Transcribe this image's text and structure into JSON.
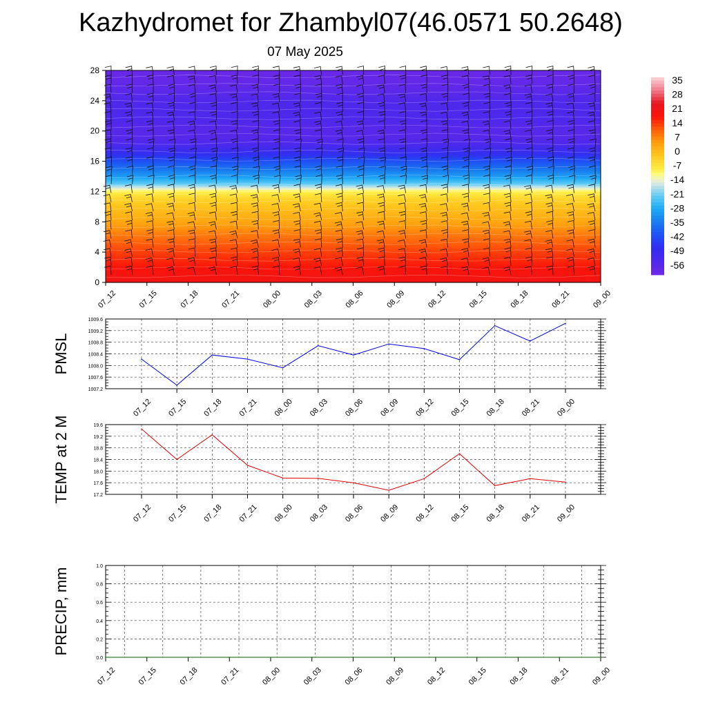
{
  "header": {
    "title": "Kazhydromet for Zhambyl07(46.0571 50.2648)",
    "subtitle": "07 May 2025"
  },
  "chart_data": [
    {
      "type": "heatmap",
      "title": "",
      "xlabel": "",
      "ylabel": "",
      "categories": [
        "07_12",
        "07_15",
        "07_18",
        "07_21",
        "08_00",
        "08_03",
        "08_06",
        "08_09",
        "08_12",
        "08_15",
        "08_18",
        "08_21",
        "09_00"
      ],
      "yticks": [
        "0",
        "4",
        "8",
        "12",
        "16",
        "20",
        "24",
        "28"
      ],
      "ylim": [
        0,
        28
      ],
      "colorbar": {
        "labels": [
          "35",
          "28",
          "21",
          "14",
          "7",
          "0",
          "-7",
          "-14",
          "-21",
          "-28",
          "-35",
          "-42",
          "-49",
          "-56"
        ],
        "range": [
          -63,
          42
        ]
      },
      "temperature_profile": {
        "levels": [
          0,
          2,
          4,
          6,
          8,
          10,
          11,
          12,
          12.5,
          13,
          14,
          16,
          17,
          18,
          19,
          20,
          22,
          24,
          26,
          28
        ],
        "values": [
          24,
          21,
          17,
          12,
          6,
          1,
          -2,
          -7,
          -14,
          -21,
          -30,
          -42,
          -49,
          -54,
          -57,
          -58,
          -55,
          -56,
          -60,
          -62
        ]
      },
      "overlay": "wind barbs"
    },
    {
      "type": "line",
      "ylabel": "PMSL",
      "categories": [
        "07_12",
        "07_15",
        "07_18",
        "07_21",
        "08_00",
        "08_03",
        "08_06",
        "08_09",
        "08_12",
        "08_15",
        "08_18",
        "08_21",
        "09_00"
      ],
      "series": [
        {
          "values": [
            1008.22,
            1007.32,
            1008.36,
            1008.22,
            1007.92,
            1008.68,
            1008.36,
            1008.74,
            1008.58,
            1008.2,
            1009.37,
            1008.84,
            1009.45
          ],
          "color": "#0000dd"
        }
      ],
      "yticks": [
        "1007.2",
        "1007.6",
        "1008.0",
        "1008.4",
        "1008.8",
        "1009.2",
        "1009.6"
      ],
      "ylim": [
        1007.2,
        1009.6
      ],
      "grid": true
    },
    {
      "type": "line",
      "ylabel": "TEMP at 2 M",
      "categories": [
        "07_12",
        "07_15",
        "07_18",
        "07_21",
        "08_00",
        "08_03",
        "08_06",
        "08_09",
        "08_12",
        "08_15",
        "08_18",
        "08_21",
        "09_00"
      ],
      "series": [
        {
          "values": [
            19.45,
            18.4,
            19.25,
            18.2,
            17.76,
            17.75,
            17.6,
            17.34,
            17.74,
            18.6,
            17.5,
            17.74,
            17.62
          ],
          "color": "#dd0000"
        }
      ],
      "yticks": [
        "17.2",
        "17.6",
        "18.0",
        "18.4",
        "18.8",
        "19.2",
        "19.6"
      ],
      "ylim": [
        17.2,
        19.6
      ],
      "grid": true
    },
    {
      "type": "line",
      "ylabel": "PRECIP, mm",
      "categories": [
        "07_12",
        "07_15",
        "07_18",
        "07_21",
        "08_00",
        "08_03",
        "08_06",
        "08_09",
        "08_12",
        "08_15",
        "08_18",
        "08_21",
        "09_00"
      ],
      "series": [
        {
          "values": [
            0,
            0,
            0,
            0,
            0,
            0,
            0,
            0,
            0,
            0,
            0,
            0,
            0
          ],
          "color": "#006400"
        }
      ],
      "yticks": [
        "0.0",
        "0.2",
        "0.4",
        "0.6",
        "0.8",
        "1.0"
      ],
      "ylim": [
        0,
        1
      ],
      "grid": true
    }
  ]
}
